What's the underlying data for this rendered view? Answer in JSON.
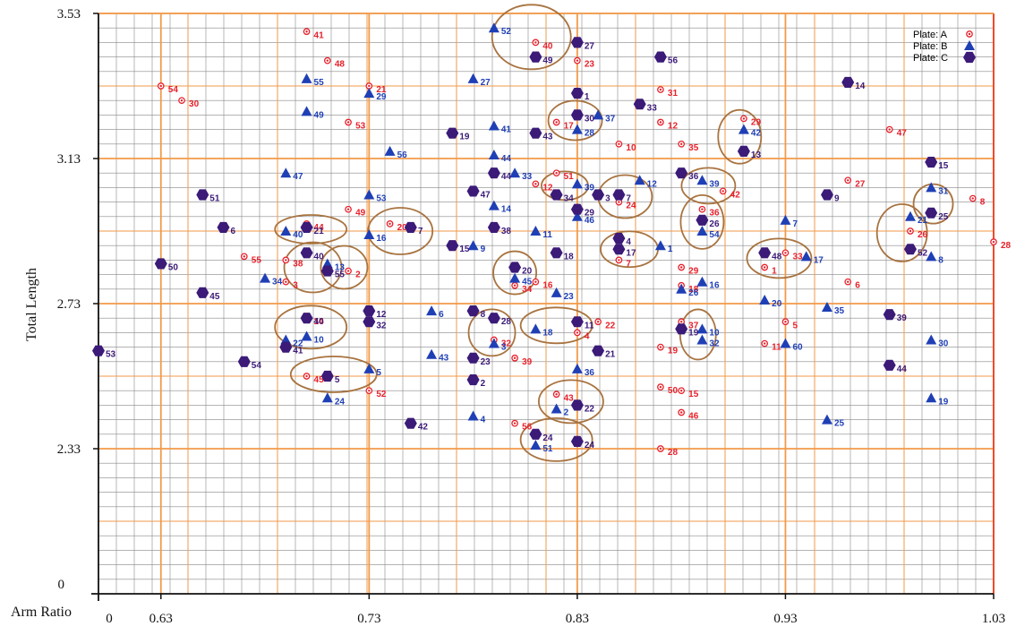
{
  "chart_data": {
    "type": "scatter",
    "title": "",
    "xlabel": "Arm Ratio",
    "ylabel": "Total Length",
    "xlim": [
      0.6,
      1.03
    ],
    "ylim": [
      1.93,
      3.53
    ],
    "x_ticks": [
      {
        "value": 0.63,
        "label": "0.63"
      },
      {
        "value": 0.73,
        "label": "0.73"
      },
      {
        "value": 0.83,
        "label": "0.83"
      },
      {
        "value": 0.93,
        "label": "0.93"
      },
      {
        "value": 1.03,
        "label": "1.03"
      }
    ],
    "x_origin_label": "0",
    "y_ticks": [
      {
        "value": 2.33,
        "label": "2.33"
      },
      {
        "value": 2.73,
        "label": "2.73"
      },
      {
        "value": 3.13,
        "label": "3.13"
      },
      {
        "value": 3.53,
        "label": "3.53"
      }
    ],
    "y_origin_label": "0",
    "grid": true,
    "legend_position": "top-right",
    "colors": {
      "A": "#e8202a",
      "B": "#1f3fb5",
      "C": "#3b1a78",
      "grid": "#888888",
      "major_grid": "#f29a4a",
      "circle": "#a8733f"
    },
    "series": [
      {
        "name": "Plate: A",
        "marker": "circle-dot",
        "color": "#e8202a",
        "points": [
          {
            "x": 0.7,
            "y": 3.48,
            "label": "41"
          },
          {
            "x": 0.71,
            "y": 3.4,
            "label": "48"
          },
          {
            "x": 0.63,
            "y": 3.33,
            "label": "54"
          },
          {
            "x": 0.64,
            "y": 3.29,
            "label": "30"
          },
          {
            "x": 0.73,
            "y": 3.33,
            "label": "21"
          },
          {
            "x": 0.72,
            "y": 3.23,
            "label": "53"
          },
          {
            "x": 0.81,
            "y": 3.45,
            "label": "40"
          },
          {
            "x": 0.83,
            "y": 3.4,
            "label": "23"
          },
          {
            "x": 0.82,
            "y": 3.23,
            "label": "17"
          },
          {
            "x": 0.87,
            "y": 3.32,
            "label": "31"
          },
          {
            "x": 0.87,
            "y": 3.23,
            "label": "12"
          },
          {
            "x": 0.85,
            "y": 3.17,
            "label": "10"
          },
          {
            "x": 0.88,
            "y": 3.17,
            "label": "35"
          },
          {
            "x": 0.91,
            "y": 3.24,
            "label": "29"
          },
          {
            "x": 0.98,
            "y": 3.21,
            "label": "47"
          },
          {
            "x": 0.82,
            "y": 3.09,
            "label": "51"
          },
          {
            "x": 0.81,
            "y": 3.06,
            "label": "12"
          },
          {
            "x": 0.85,
            "y": 3.01,
            "label": "24"
          },
          {
            "x": 0.9,
            "y": 3.04,
            "label": "42"
          },
          {
            "x": 0.96,
            "y": 3.07,
            "label": "27"
          },
          {
            "x": 1.02,
            "y": 3.02,
            "label": "8"
          },
          {
            "x": 0.72,
            "y": 2.99,
            "label": "49"
          },
          {
            "x": 0.74,
            "y": 2.95,
            "label": "20"
          },
          {
            "x": 0.7,
            "y": 2.95,
            "label": "44"
          },
          {
            "x": 0.89,
            "y": 2.99,
            "label": "36"
          },
          {
            "x": 0.99,
            "y": 2.93,
            "label": "26"
          },
          {
            "x": 1.03,
            "y": 2.9,
            "label": "28"
          },
          {
            "x": 0.67,
            "y": 2.86,
            "label": "55"
          },
          {
            "x": 0.69,
            "y": 2.85,
            "label": "38"
          },
          {
            "x": 0.69,
            "y": 2.79,
            "label": "3"
          },
          {
            "x": 0.72,
            "y": 2.82,
            "label": "2"
          },
          {
            "x": 0.8,
            "y": 2.78,
            "label": "34"
          },
          {
            "x": 0.81,
            "y": 2.79,
            "label": "16"
          },
          {
            "x": 0.88,
            "y": 2.83,
            "label": "29"
          },
          {
            "x": 0.88,
            "y": 2.78,
            "label": "18"
          },
          {
            "x": 0.93,
            "y": 2.87,
            "label": "33"
          },
          {
            "x": 0.92,
            "y": 2.83,
            "label": "1"
          },
          {
            "x": 0.96,
            "y": 2.79,
            "label": "6"
          },
          {
            "x": 0.85,
            "y": 2.85,
            "label": "7"
          },
          {
            "x": 0.7,
            "y": 2.69,
            "label": "14"
          },
          {
            "x": 0.83,
            "y": 2.65,
            "label": "4"
          },
          {
            "x": 0.84,
            "y": 2.68,
            "label": "22"
          },
          {
            "x": 0.88,
            "y": 2.68,
            "label": "37"
          },
          {
            "x": 0.87,
            "y": 2.61,
            "label": "19"
          },
          {
            "x": 0.93,
            "y": 2.68,
            "label": "5"
          },
          {
            "x": 0.92,
            "y": 2.62,
            "label": "11"
          },
          {
            "x": 0.79,
            "y": 2.63,
            "label": "32"
          },
          {
            "x": 0.8,
            "y": 2.58,
            "label": "39"
          },
          {
            "x": 0.7,
            "y": 2.53,
            "label": "45"
          },
          {
            "x": 0.73,
            "y": 2.49,
            "label": "52"
          },
          {
            "x": 0.82,
            "y": 2.48,
            "label": "43"
          },
          {
            "x": 0.87,
            "y": 2.5,
            "label": "50"
          },
          {
            "x": 0.88,
            "y": 2.49,
            "label": "15"
          },
          {
            "x": 0.88,
            "y": 2.43,
            "label": "46"
          },
          {
            "x": 0.8,
            "y": 2.4,
            "label": "56"
          },
          {
            "x": 0.87,
            "y": 2.33,
            "label": "28"
          }
        ]
      },
      {
        "name": "Plate: B",
        "marker": "triangle",
        "color": "#1f3fb5",
        "points": [
          {
            "x": 0.79,
            "y": 3.49,
            "label": "52"
          },
          {
            "x": 0.7,
            "y": 3.35,
            "label": "55"
          },
          {
            "x": 0.7,
            "y": 3.26,
            "label": "49"
          },
          {
            "x": 0.73,
            "y": 3.31,
            "label": "29"
          },
          {
            "x": 0.78,
            "y": 3.35,
            "label": "27"
          },
          {
            "x": 0.79,
            "y": 3.22,
            "label": "41"
          },
          {
            "x": 0.84,
            "y": 3.25,
            "label": "37"
          },
          {
            "x": 0.83,
            "y": 3.21,
            "label": "28"
          },
          {
            "x": 0.91,
            "y": 3.21,
            "label": "42"
          },
          {
            "x": 0.69,
            "y": 3.09,
            "label": "47"
          },
          {
            "x": 0.74,
            "y": 3.15,
            "label": "56"
          },
          {
            "x": 0.79,
            "y": 3.14,
            "label": "44"
          },
          {
            "x": 0.8,
            "y": 3.09,
            "label": "33"
          },
          {
            "x": 0.83,
            "y": 3.06,
            "label": "39"
          },
          {
            "x": 0.86,
            "y": 3.07,
            "label": "12"
          },
          {
            "x": 0.89,
            "y": 3.07,
            "label": "39"
          },
          {
            "x": 1.0,
            "y": 3.05,
            "label": "31"
          },
          {
            "x": 0.73,
            "y": 3.03,
            "label": "53"
          },
          {
            "x": 0.79,
            "y": 3.0,
            "label": "14"
          },
          {
            "x": 0.83,
            "y": 2.97,
            "label": "46"
          },
          {
            "x": 0.81,
            "y": 2.93,
            "label": "11"
          },
          {
            "x": 0.69,
            "y": 2.93,
            "label": "40"
          },
          {
            "x": 0.73,
            "y": 2.92,
            "label": "16"
          },
          {
            "x": 0.78,
            "y": 2.89,
            "label": "9"
          },
          {
            "x": 0.89,
            "y": 2.93,
            "label": "54"
          },
          {
            "x": 0.93,
            "y": 2.96,
            "label": "7"
          },
          {
            "x": 0.99,
            "y": 2.97,
            "label": "21"
          },
          {
            "x": 0.87,
            "y": 2.89,
            "label": "1"
          },
          {
            "x": 0.94,
            "y": 2.86,
            "label": "17"
          },
          {
            "x": 1.0,
            "y": 2.86,
            "label": "8"
          },
          {
            "x": 0.71,
            "y": 2.84,
            "label": "13"
          },
          {
            "x": 0.68,
            "y": 2.8,
            "label": "34"
          },
          {
            "x": 0.8,
            "y": 2.8,
            "label": "45"
          },
          {
            "x": 0.82,
            "y": 2.76,
            "label": "23"
          },
          {
            "x": 0.88,
            "y": 2.77,
            "label": "26"
          },
          {
            "x": 0.89,
            "y": 2.79,
            "label": "16"
          },
          {
            "x": 0.92,
            "y": 2.74,
            "label": "20"
          },
          {
            "x": 0.95,
            "y": 2.72,
            "label": "35"
          },
          {
            "x": 0.76,
            "y": 2.71,
            "label": "6"
          },
          {
            "x": 0.69,
            "y": 2.63,
            "label": "22"
          },
          {
            "x": 0.7,
            "y": 2.64,
            "label": "10"
          },
          {
            "x": 0.79,
            "y": 2.62,
            "label": "3"
          },
          {
            "x": 0.81,
            "y": 2.66,
            "label": "18"
          },
          {
            "x": 0.89,
            "y": 2.66,
            "label": "10"
          },
          {
            "x": 0.89,
            "y": 2.63,
            "label": "32"
          },
          {
            "x": 0.93,
            "y": 2.62,
            "label": "60"
          },
          {
            "x": 0.76,
            "y": 2.59,
            "label": "43"
          },
          {
            "x": 0.73,
            "y": 2.55,
            "label": "5"
          },
          {
            "x": 0.83,
            "y": 2.55,
            "label": "36"
          },
          {
            "x": 1.0,
            "y": 2.63,
            "label": "30"
          },
          {
            "x": 0.71,
            "y": 2.47,
            "label": "24"
          },
          {
            "x": 0.82,
            "y": 2.44,
            "label": "2"
          },
          {
            "x": 0.78,
            "y": 2.42,
            "label": "4"
          },
          {
            "x": 0.95,
            "y": 2.41,
            "label": "25"
          },
          {
            "x": 1.0,
            "y": 2.47,
            "label": "19"
          },
          {
            "x": 0.81,
            "y": 2.34,
            "label": "51"
          }
        ]
      },
      {
        "name": "Plate: C",
        "marker": "hexagon",
        "color": "#3b1a78",
        "points": [
          {
            "x": 0.83,
            "y": 3.45,
            "label": "27"
          },
          {
            "x": 0.81,
            "y": 3.41,
            "label": "49"
          },
          {
            "x": 0.87,
            "y": 3.41,
            "label": "56"
          },
          {
            "x": 0.83,
            "y": 3.31,
            "label": "1"
          },
          {
            "x": 0.86,
            "y": 3.28,
            "label": "33"
          },
          {
            "x": 0.83,
            "y": 3.25,
            "label": "30"
          },
          {
            "x": 0.96,
            "y": 3.34,
            "label": "14"
          },
          {
            "x": 0.77,
            "y": 3.2,
            "label": "19"
          },
          {
            "x": 0.81,
            "y": 3.2,
            "label": "43"
          },
          {
            "x": 0.91,
            "y": 3.15,
            "label": "13"
          },
          {
            "x": 1.0,
            "y": 3.12,
            "label": "15"
          },
          {
            "x": 0.79,
            "y": 3.09,
            "label": "44"
          },
          {
            "x": 0.88,
            "y": 3.09,
            "label": "36"
          },
          {
            "x": 0.82,
            "y": 3.03,
            "label": "34"
          },
          {
            "x": 0.84,
            "y": 3.03,
            "label": "3"
          },
          {
            "x": 0.85,
            "y": 3.03,
            "label": "7"
          },
          {
            "x": 0.78,
            "y": 3.04,
            "label": "47"
          },
          {
            "x": 0.65,
            "y": 3.03,
            "label": "51"
          },
          {
            "x": 0.95,
            "y": 3.03,
            "label": "9"
          },
          {
            "x": 0.83,
            "y": 2.99,
            "label": "29"
          },
          {
            "x": 1.0,
            "y": 2.98,
            "label": "25"
          },
          {
            "x": 0.89,
            "y": 2.96,
            "label": "26"
          },
          {
            "x": 0.66,
            "y": 2.94,
            "label": "6"
          },
          {
            "x": 0.7,
            "y": 2.94,
            "label": "21"
          },
          {
            "x": 0.75,
            "y": 2.94,
            "label": "7"
          },
          {
            "x": 0.79,
            "y": 2.94,
            "label": "38"
          },
          {
            "x": 0.77,
            "y": 2.89,
            "label": "15"
          },
          {
            "x": 0.85,
            "y": 2.91,
            "label": "4"
          },
          {
            "x": 0.85,
            "y": 2.88,
            "label": "17"
          },
          {
            "x": 0.99,
            "y": 2.88,
            "label": "52"
          },
          {
            "x": 0.7,
            "y": 2.87,
            "label": "40"
          },
          {
            "x": 0.82,
            "y": 2.87,
            "label": "18"
          },
          {
            "x": 0.92,
            "y": 2.87,
            "label": "48"
          },
          {
            "x": 0.63,
            "y": 2.84,
            "label": "50"
          },
          {
            "x": 0.71,
            "y": 2.82,
            "label": "55"
          },
          {
            "x": 0.8,
            "y": 2.83,
            "label": "20"
          },
          {
            "x": 0.65,
            "y": 2.76,
            "label": "45"
          },
          {
            "x": 0.73,
            "y": 2.71,
            "label": "12"
          },
          {
            "x": 0.73,
            "y": 2.68,
            "label": "32"
          },
          {
            "x": 0.7,
            "y": 2.69,
            "label": "40"
          },
          {
            "x": 0.78,
            "y": 2.71,
            "label": "8"
          },
          {
            "x": 0.79,
            "y": 2.69,
            "label": "28"
          },
          {
            "x": 0.83,
            "y": 2.68,
            "label": "11"
          },
          {
            "x": 0.88,
            "y": 2.66,
            "label": "19"
          },
          {
            "x": 0.98,
            "y": 2.7,
            "label": "39"
          },
          {
            "x": 0.6,
            "y": 2.6,
            "label": "53"
          },
          {
            "x": 0.69,
            "y": 2.61,
            "label": "41"
          },
          {
            "x": 0.78,
            "y": 2.58,
            "label": "23"
          },
          {
            "x": 0.84,
            "y": 2.6,
            "label": "21"
          },
          {
            "x": 0.67,
            "y": 2.57,
            "label": "54"
          },
          {
            "x": 0.98,
            "y": 2.56,
            "label": "44"
          },
          {
            "x": 0.71,
            "y": 2.53,
            "label": "5"
          },
          {
            "x": 0.78,
            "y": 2.52,
            "label": "2"
          },
          {
            "x": 0.83,
            "y": 2.45,
            "label": "22"
          },
          {
            "x": 0.75,
            "y": 2.4,
            "label": "42"
          },
          {
            "x": 0.81,
            "y": 2.37,
            "label": "24"
          },
          {
            "x": 0.83,
            "y": 2.35,
            "label": "24"
          }
        ]
      }
    ]
  }
}
